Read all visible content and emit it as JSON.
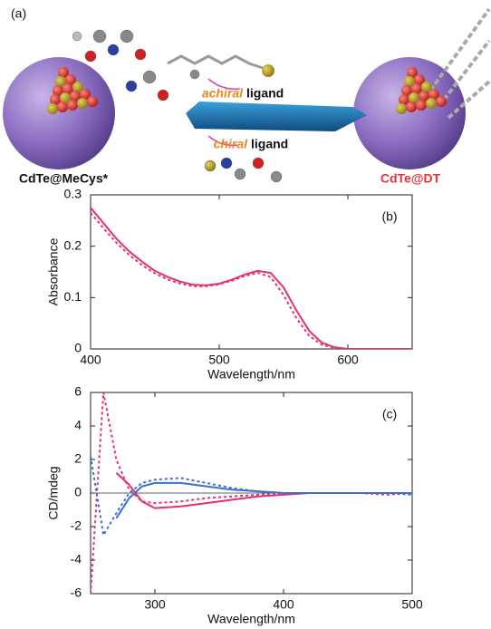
{
  "diagram": {
    "panel": "(a)",
    "left_label": "CdTe@MeCys*",
    "right_label": "CdTe@DT",
    "top_arrow": {
      "emphasis": "achiral",
      "text": "ligand"
    },
    "bottom_arrow": {
      "emphasis": "chiral",
      "text": "ligand"
    }
  },
  "chart_data": [
    {
      "type": "line",
      "panel": "(b)",
      "x_label": "Wavelength/nm",
      "y_label": "Absorbance",
      "xlim": [
        400,
        650
      ],
      "ylim": [
        0,
        0.3
      ],
      "xticks": [
        400,
        500,
        600
      ],
      "yticks": [
        0,
        0.1,
        0.2,
        0.3
      ],
      "x": [
        400,
        410,
        420,
        430,
        440,
        450,
        460,
        470,
        480,
        490,
        500,
        510,
        520,
        530,
        540,
        550,
        560,
        570,
        580,
        590,
        600,
        610,
        620,
        630,
        640,
        650
      ],
      "series": [
        {
          "color": "#e8306a",
          "style": "solid",
          "values": [
            0.275,
            0.245,
            0.215,
            0.19,
            0.17,
            0.152,
            0.14,
            0.131,
            0.125,
            0.124,
            0.127,
            0.135,
            0.145,
            0.152,
            0.148,
            0.12,
            0.075,
            0.035,
            0.012,
            0.003,
            0,
            0,
            0,
            0,
            0,
            0
          ]
        },
        {
          "color": "#e8306a",
          "style": "dotted",
          "values": [
            0.265,
            0.235,
            0.207,
            0.183,
            0.163,
            0.147,
            0.135,
            0.127,
            0.122,
            0.122,
            0.126,
            0.133,
            0.142,
            0.148,
            0.14,
            0.105,
            0.06,
            0.025,
            0.008,
            0.002,
            0,
            0,
            0,
            0,
            0,
            0
          ]
        }
      ]
    },
    {
      "type": "line",
      "panel": "(c)",
      "x_label": "Wavelength/nm",
      "y_label": "CD/mdeg",
      "xlim": [
        250,
        500
      ],
      "ylim": [
        -6,
        6
      ],
      "xticks": [
        300,
        400,
        500
      ],
      "yticks": [
        -6,
        -4,
        -2,
        0,
        2,
        4,
        6
      ],
      "zero_line": true,
      "x": [
        250,
        260,
        270,
        280,
        290,
        300,
        320,
        340,
        360,
        380,
        400,
        420,
        440,
        460,
        480,
        500
      ],
      "series": [
        {
          "color": "#e8306a",
          "style": "dotted",
          "values": [
            -6,
            6,
            2,
            0.2,
            -0.5,
            -0.6,
            -0.5,
            -0.3,
            -0.2,
            -0.1,
            0,
            0,
            0,
            0,
            -0.1,
            0
          ]
        },
        {
          "color": "#e8306a",
          "style": "solid",
          "values": [
            null,
            null,
            1.2,
            0.5,
            -0.5,
            -0.9,
            -0.8,
            -0.6,
            -0.4,
            -0.2,
            -0.1,
            0,
            0,
            0,
            0,
            0
          ]
        },
        {
          "color": "#3b6fd0",
          "style": "dotted",
          "values": [
            2.2,
            -2.5,
            -1.2,
            0,
            0.6,
            0.8,
            0.9,
            0.6,
            0.3,
            0.1,
            0,
            0,
            0,
            0,
            0,
            -0.1
          ]
        },
        {
          "color": "#3b6fd0",
          "style": "solid",
          "values": [
            null,
            null,
            -1.5,
            -0.3,
            0.4,
            0.6,
            0.6,
            0.4,
            0.2,
            0.1,
            0,
            0,
            0,
            0,
            0,
            0
          ]
        }
      ]
    }
  ]
}
